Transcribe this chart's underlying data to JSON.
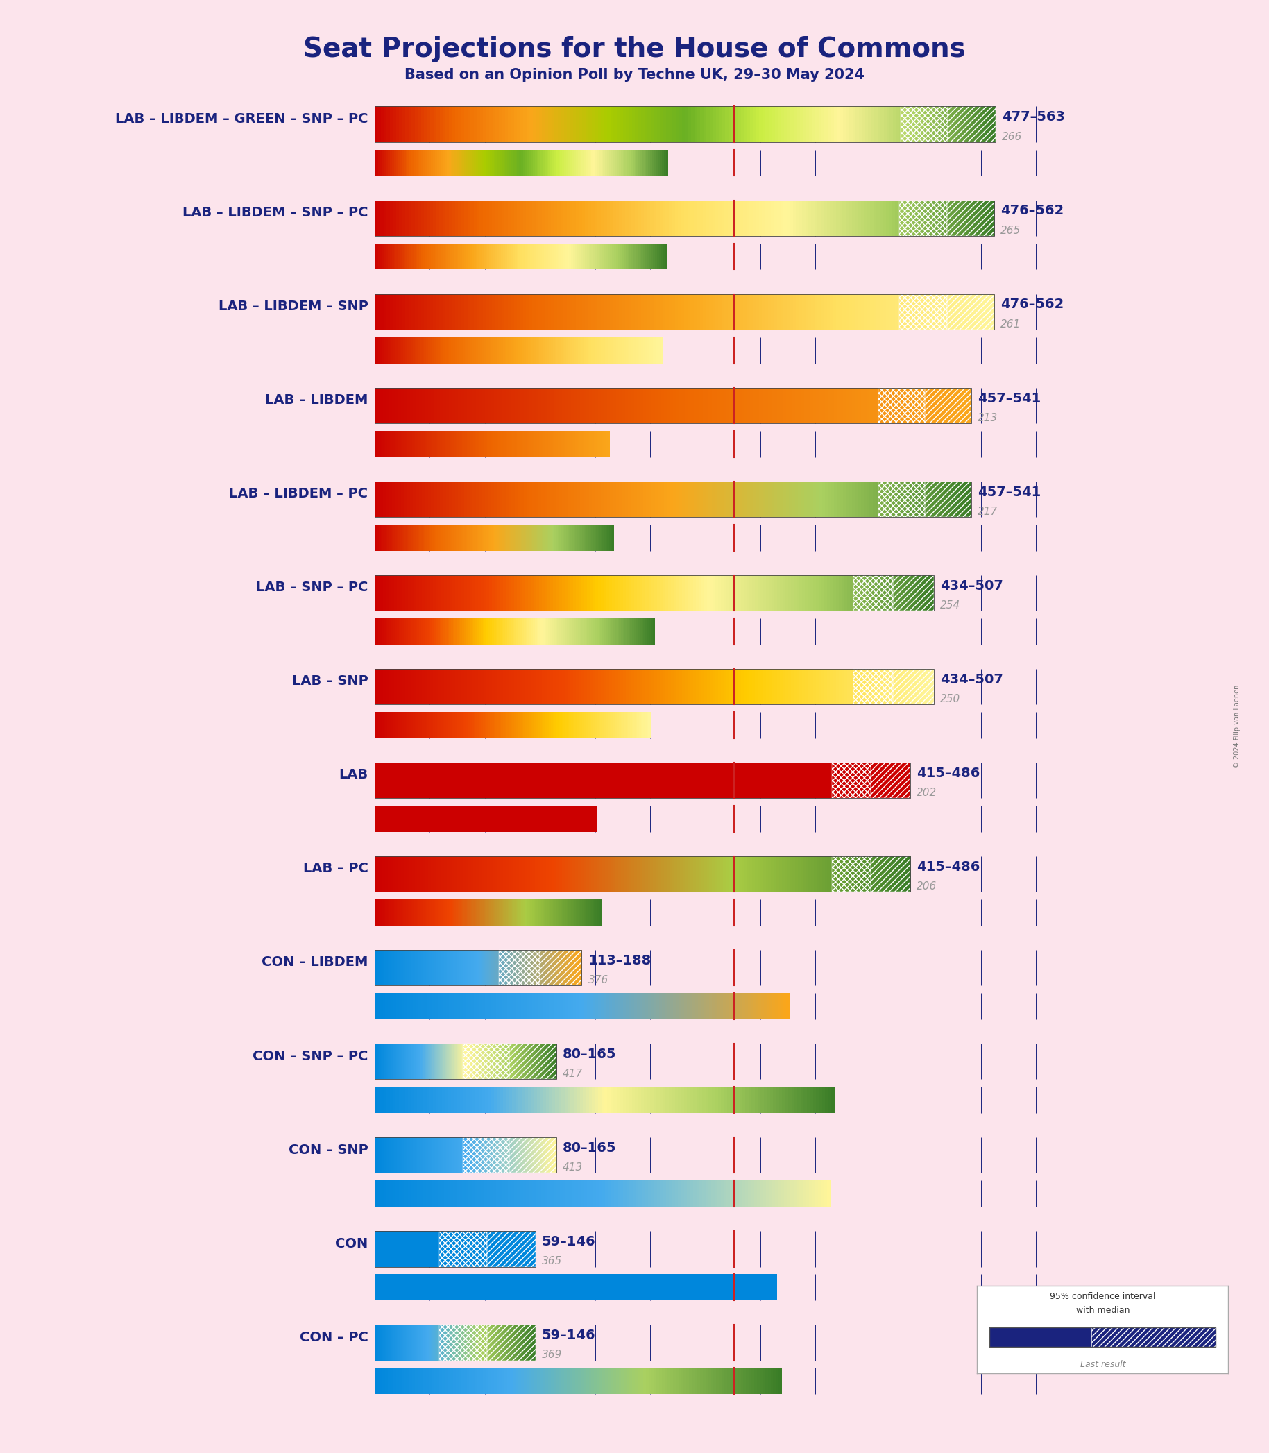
{
  "title": "Seat Projections for the House of Commons",
  "subtitle": "Based on an Opinion Poll by Techne UK, 29–30 May 2024",
  "copyright": "© 2024 Filip van Laenen",
  "background_color": "#fce4ec",
  "title_color": "#1a237e",
  "subtitle_color": "#1a237e",
  "majority_line": 326,
  "total_seats": 650,
  "coalitions": [
    {
      "name": "LAB – LIBDEM – GREEN – SNP – PC",
      "low": 477,
      "median": 520,
      "high": 563,
      "last_result": 266,
      "parties": [
        "LAB",
        "LIBDEM",
        "GREEN",
        "SNP",
        "PC"
      ],
      "gradient_colors": [
        "#cc0000",
        "#ee6600",
        "#faa61a",
        "#aacc00",
        "#6ab023",
        "#ccee44",
        "#fff599",
        "#aad060",
        "#3a7d27"
      ],
      "bar_type": "lab"
    },
    {
      "name": "LAB – LIBDEM – SNP – PC",
      "low": 476,
      "median": 519,
      "high": 562,
      "last_result": 265,
      "parties": [
        "LAB",
        "LIBDEM",
        "SNP",
        "PC"
      ],
      "gradient_colors": [
        "#cc0000",
        "#ee6600",
        "#faa61a",
        "#ffe060",
        "#fff599",
        "#aad060",
        "#3a7d27"
      ],
      "bar_type": "lab"
    },
    {
      "name": "LAB – LIBDEM – SNP",
      "low": 476,
      "median": 519,
      "high": 562,
      "last_result": 261,
      "parties": [
        "LAB",
        "LIBDEM",
        "SNP"
      ],
      "gradient_colors": [
        "#cc0000",
        "#ee6600",
        "#faa61a",
        "#ffe060",
        "#fff599"
      ],
      "bar_type": "lab"
    },
    {
      "name": "LAB – LIBDEM",
      "low": 457,
      "median": 499,
      "high": 541,
      "last_result": 213,
      "parties": [
        "LAB",
        "LIBDEM"
      ],
      "gradient_colors": [
        "#cc0000",
        "#ee6600",
        "#faa61a"
      ],
      "bar_type": "lab"
    },
    {
      "name": "LAB – LIBDEM – PC",
      "low": 457,
      "median": 499,
      "high": 541,
      "last_result": 217,
      "parties": [
        "LAB",
        "LIBDEM",
        "PC"
      ],
      "gradient_colors": [
        "#cc0000",
        "#ee6600",
        "#faa61a",
        "#aad060",
        "#3a7d27"
      ],
      "bar_type": "lab"
    },
    {
      "name": "LAB – SNP – PC",
      "low": 434,
      "median": 470,
      "high": 507,
      "last_result": 254,
      "parties": [
        "LAB",
        "SNP",
        "PC"
      ],
      "gradient_colors": [
        "#cc0000",
        "#ee4400",
        "#ffcc00",
        "#fff599",
        "#aad060",
        "#3a7d27"
      ],
      "bar_type": "lab"
    },
    {
      "name": "LAB – SNP",
      "low": 434,
      "median": 470,
      "high": 507,
      "last_result": 250,
      "parties": [
        "LAB",
        "SNP"
      ],
      "gradient_colors": [
        "#cc0000",
        "#ee4400",
        "#ffcc00",
        "#fff599"
      ],
      "bar_type": "lab"
    },
    {
      "name": "LAB",
      "low": 415,
      "median": 450,
      "high": 486,
      "last_result": 202,
      "parties": [
        "LAB"
      ],
      "gradient_colors": [
        "#cc0000"
      ],
      "bar_type": "lab"
    },
    {
      "name": "LAB – PC",
      "low": 415,
      "median": 450,
      "high": 486,
      "last_result": 206,
      "parties": [
        "LAB",
        "PC"
      ],
      "gradient_colors": [
        "#cc0000",
        "#ee4400",
        "#aacc44",
        "#3a7d27"
      ],
      "bar_type": "lab"
    },
    {
      "name": "CON – LIBDEM",
      "low": 113,
      "median": 150,
      "high": 188,
      "last_result": 376,
      "parties": [
        "CON",
        "LIBDEM"
      ],
      "gradient_colors": [
        "#0087dc",
        "#44aaee",
        "#faa61a"
      ],
      "bar_type": "con"
    },
    {
      "name": "CON – SNP – PC",
      "low": 80,
      "median": 122,
      "high": 165,
      "last_result": 417,
      "parties": [
        "CON",
        "SNP",
        "PC"
      ],
      "gradient_colors": [
        "#0087dc",
        "#44aaee",
        "#fff599",
        "#aad060",
        "#3a7d27"
      ],
      "bar_type": "con"
    },
    {
      "name": "CON – SNP",
      "low": 80,
      "median": 122,
      "high": 165,
      "last_result": 413,
      "parties": [
        "CON",
        "SNP"
      ],
      "gradient_colors": [
        "#0087dc",
        "#44aaee",
        "#fff599"
      ],
      "bar_type": "con"
    },
    {
      "name": "CON",
      "low": 59,
      "median": 102,
      "high": 146,
      "last_result": 365,
      "parties": [
        "CON"
      ],
      "gradient_colors": [
        "#0087dc"
      ],
      "bar_type": "con"
    },
    {
      "name": "CON – PC",
      "low": 59,
      "median": 102,
      "high": 146,
      "last_result": 369,
      "parties": [
        "CON",
        "PC"
      ],
      "gradient_colors": [
        "#0087dc",
        "#44aaee",
        "#aad060",
        "#3a7d27"
      ],
      "bar_type": "con"
    }
  ]
}
